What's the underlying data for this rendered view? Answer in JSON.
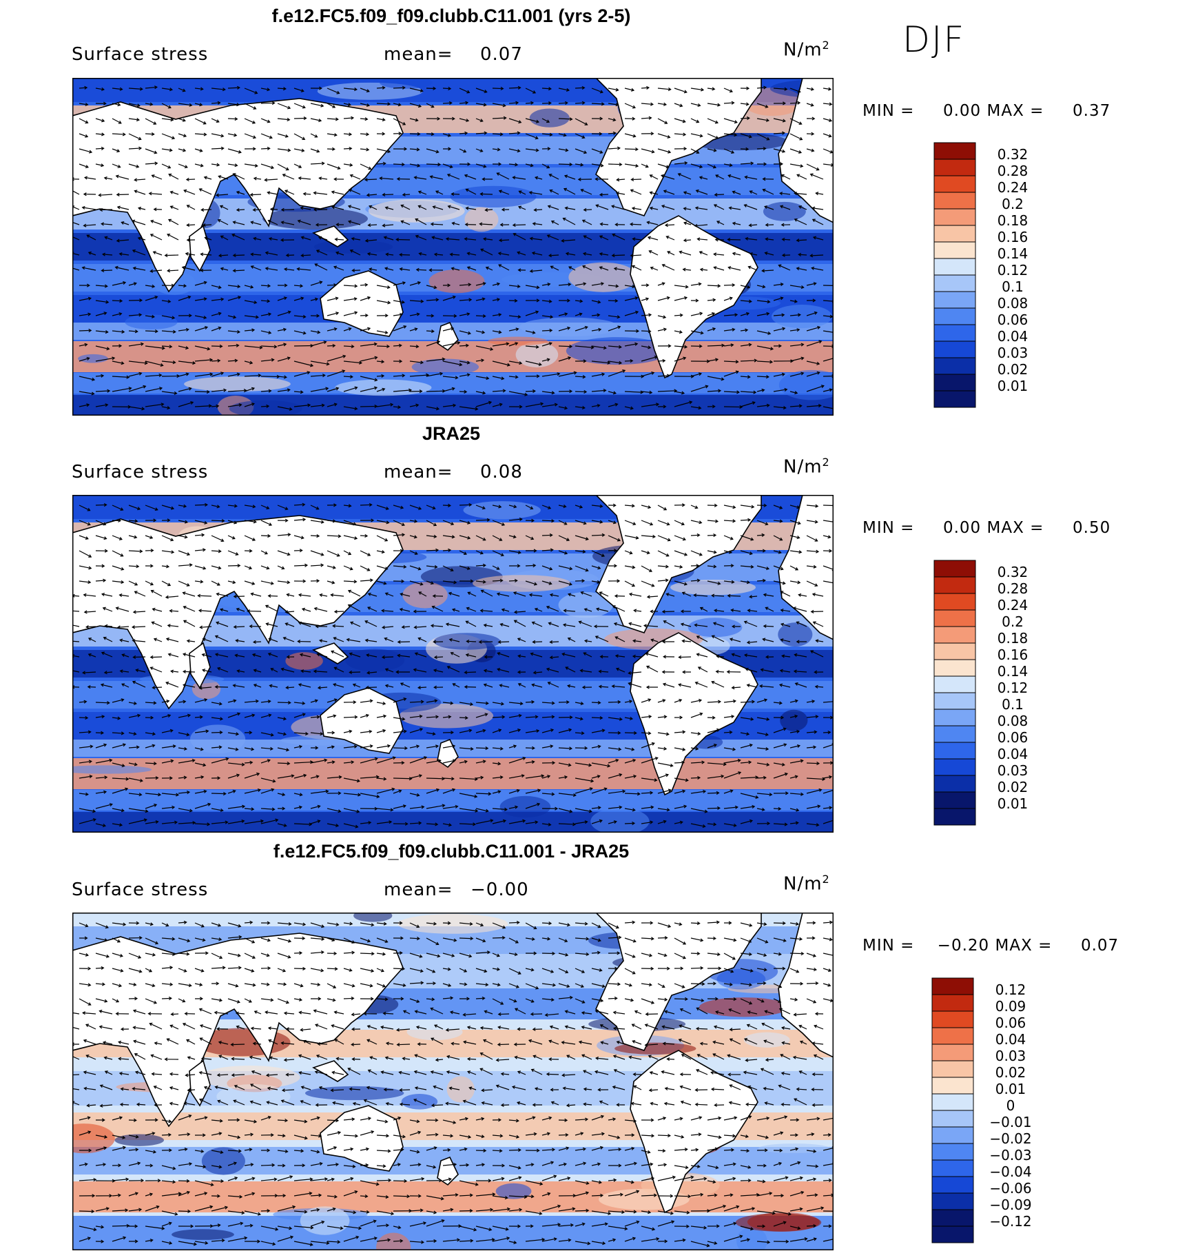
{
  "season": "DJF",
  "panels": [
    {
      "title": "f.e12.FC5.f09_f09.clubb.C11.001 (yrs 2-5)",
      "field": "Surface stress",
      "mean_label": "mean=",
      "mean_value": "0.07",
      "units": "N/m",
      "units_exp": "2",
      "min_label": "MIN =",
      "min_value": "0.00",
      "max_label": "MAX =",
      "max_value": "0.37",
      "colorbar": [
        "0.32",
        "0.28",
        "0.24",
        "0.2",
        "0.18",
        "0.16",
        "0.14",
        "0.12",
        "0.1",
        "0.08",
        "0.06",
        "0.04",
        "0.03",
        "0.02",
        "0.01"
      ]
    },
    {
      "title": "JRA25",
      "field": "Surface stress",
      "mean_label": "mean=",
      "mean_value": "0.08",
      "units": "N/m",
      "units_exp": "2",
      "min_label": "MIN =",
      "min_value": "0.00",
      "max_label": "MAX =",
      "max_value": "0.50",
      "colorbar": [
        "0.32",
        "0.28",
        "0.24",
        "0.2",
        "0.18",
        "0.16",
        "0.14",
        "0.12",
        "0.1",
        "0.08",
        "0.06",
        "0.04",
        "0.03",
        "0.02",
        "0.01"
      ]
    },
    {
      "title": "f.e12.FC5.f09_f09.clubb.C11.001 - JRA25",
      "field": "Surface stress",
      "mean_label": "mean=",
      "mean_value": "−0.00",
      "units": "N/m",
      "units_exp": "2",
      "min_label": "MIN =",
      "min_value": "−0.20",
      "max_label": "MAX =",
      "max_value": "0.07",
      "colorbar": [
        "0.12",
        "0.09",
        "0.06",
        "0.04",
        "0.03",
        "0.02",
        "0.01",
        "0",
        "−0.01",
        "−0.02",
        "−0.03",
        "−0.04",
        "−0.06",
        "−0.09",
        "−0.12"
      ]
    }
  ],
  "palette": [
    "#08166b",
    "#0b2fa8",
    "#1648d6",
    "#2e66ea",
    "#4f86f2",
    "#7aa6f6",
    "#a7c6f8",
    "#d4e6fa",
    "#fbe4cf",
    "#f8c5a6",
    "#f49b78",
    "#ee7148",
    "#e04a22",
    "#c22a10",
    "#8e0e05"
  ]
}
